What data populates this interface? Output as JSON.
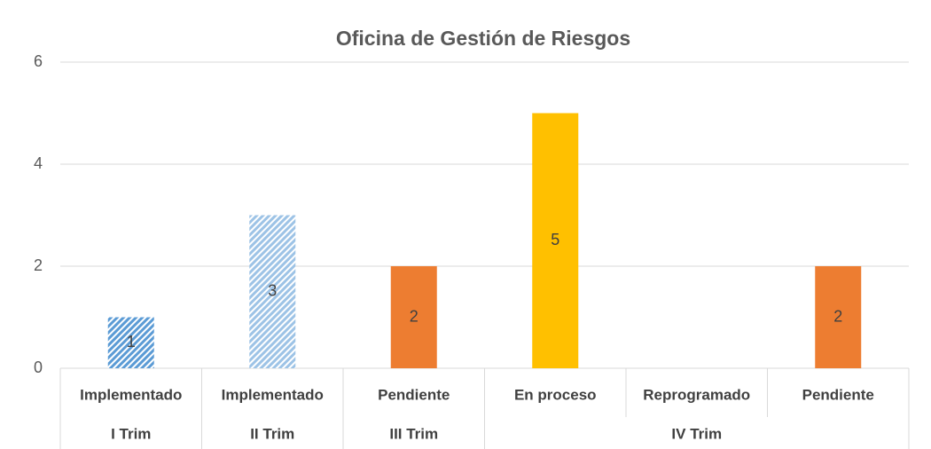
{
  "chart_data": {
    "type": "bar",
    "title": "Oficina de Gestión de Riesgos",
    "categories": [
      "Implementado",
      "Implementado",
      "Pendiente",
      "En proceso",
      "Reprogramado",
      "Pendiente"
    ],
    "groups": [
      {
        "label": "I Trim",
        "span": 1
      },
      {
        "label": "II Trim",
        "span": 1
      },
      {
        "label": "III Trim",
        "span": 1
      },
      {
        "label": "IV Trim",
        "span": 3
      }
    ],
    "values": [
      1,
      3,
      2,
      5,
      null,
      2
    ],
    "colors": [
      "#5b9bd5",
      "#9dc3e6",
      "#ed7d31",
      "#ffc000",
      null,
      "#ed7d31"
    ],
    "patterned": [
      true,
      true,
      false,
      false,
      false,
      false
    ],
    "ylim": [
      0,
      6
    ],
    "yticks": [
      0,
      2,
      4,
      6
    ],
    "grid": true
  }
}
